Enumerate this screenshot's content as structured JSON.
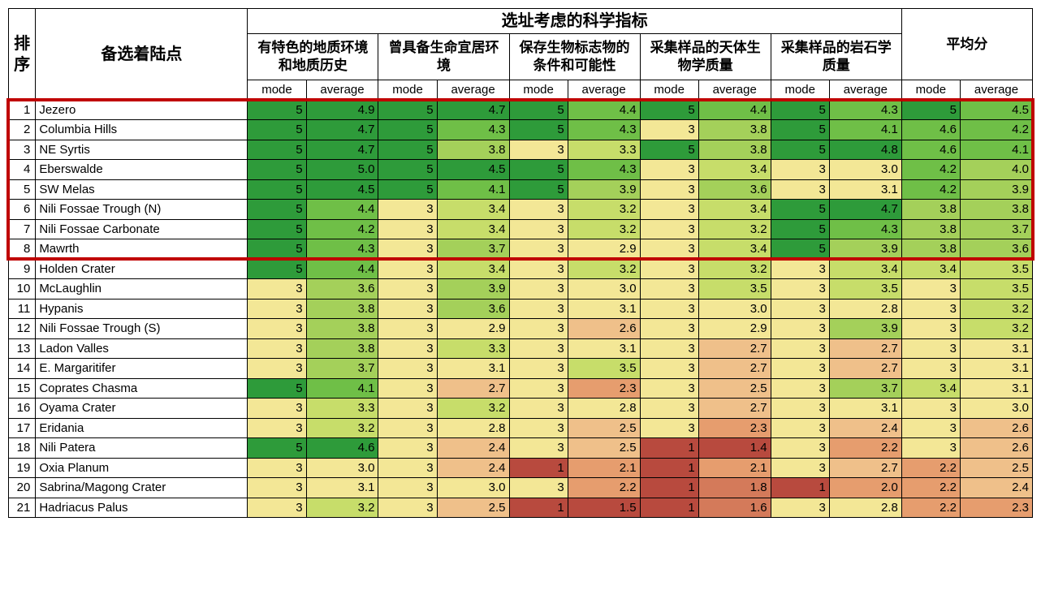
{
  "headers": {
    "rank": "排\n序",
    "site": "备选着陆点",
    "group": "选址考虑的科学指标",
    "criteria": [
      "有特色的地质环境和地质历史",
      "曾具备生命宜居环境",
      "保存生物标志物的条件和可能性",
      "采集样品的天体生物学质量",
      "采集样品的岩石学质量"
    ],
    "avg": "平均分",
    "mode": "mode",
    "average": "average"
  },
  "colors": {
    "g5": "#2e9b3a",
    "g4": "#6fbf47",
    "g3": "#a4d05a",
    "g2": "#c7dd6a",
    "y": "#f3e796",
    "o1": "#efc08a",
    "o2": "#e69d6e",
    "r1": "#d47a5a",
    "r2": "#b84a3e"
  },
  "highlight": {
    "from_row": 1,
    "to_row": 8
  },
  "rows": [
    {
      "rank": 1,
      "site": "Jezero",
      "cells": [
        {
          "v": 5,
          "c": "g5"
        },
        {
          "v": 4.9,
          "c": "g5"
        },
        {
          "v": 5,
          "c": "g5"
        },
        {
          "v": 4.7,
          "c": "g5"
        },
        {
          "v": 5,
          "c": "g5"
        },
        {
          "v": 4.4,
          "c": "g4"
        },
        {
          "v": 5,
          "c": "g5"
        },
        {
          "v": 4.4,
          "c": "g4"
        },
        {
          "v": 5,
          "c": "g5"
        },
        {
          "v": 4.3,
          "c": "g4"
        },
        {
          "v": 5,
          "c": "g5"
        },
        {
          "v": 4.5,
          "c": "g4"
        }
      ]
    },
    {
      "rank": 2,
      "site": "Columbia Hills",
      "cells": [
        {
          "v": 5,
          "c": "g5"
        },
        {
          "v": 4.7,
          "c": "g5"
        },
        {
          "v": 5,
          "c": "g5"
        },
        {
          "v": 4.3,
          "c": "g4"
        },
        {
          "v": 5,
          "c": "g5"
        },
        {
          "v": 4.3,
          "c": "g4"
        },
        {
          "v": 3,
          "c": "y"
        },
        {
          "v": 3.8,
          "c": "g3"
        },
        {
          "v": 5,
          "c": "g5"
        },
        {
          "v": 4.1,
          "c": "g4"
        },
        {
          "v": 4.6,
          "c": "g4"
        },
        {
          "v": 4.2,
          "c": "g4"
        }
      ]
    },
    {
      "rank": 3,
      "site": "NE Syrtis",
      "cells": [
        {
          "v": 5,
          "c": "g5"
        },
        {
          "v": 4.7,
          "c": "g5"
        },
        {
          "v": 5,
          "c": "g5"
        },
        {
          "v": 3.8,
          "c": "g3"
        },
        {
          "v": 3,
          "c": "y"
        },
        {
          "v": 3.3,
          "c": "g2"
        },
        {
          "v": 5,
          "c": "g5"
        },
        {
          "v": 3.8,
          "c": "g3"
        },
        {
          "v": 5,
          "c": "g5"
        },
        {
          "v": 4.8,
          "c": "g5"
        },
        {
          "v": 4.6,
          "c": "g4"
        },
        {
          "v": 4.1,
          "c": "g4"
        }
      ]
    },
    {
      "rank": 4,
      "site": "Eberswalde",
      "cells": [
        {
          "v": 5,
          "c": "g5"
        },
        {
          "v": 5.0,
          "c": "g5"
        },
        {
          "v": 5,
          "c": "g5"
        },
        {
          "v": 4.5,
          "c": "g5"
        },
        {
          "v": 5,
          "c": "g5"
        },
        {
          "v": 4.3,
          "c": "g4"
        },
        {
          "v": 3,
          "c": "y"
        },
        {
          "v": 3.4,
          "c": "g2"
        },
        {
          "v": 3,
          "c": "y"
        },
        {
          "v": 3.0,
          "c": "y"
        },
        {
          "v": 4.2,
          "c": "g4"
        },
        {
          "v": 4.0,
          "c": "g3"
        }
      ]
    },
    {
      "rank": 5,
      "site": "SW Melas",
      "cells": [
        {
          "v": 5,
          "c": "g5"
        },
        {
          "v": 4.5,
          "c": "g5"
        },
        {
          "v": 5,
          "c": "g5"
        },
        {
          "v": 4.1,
          "c": "g4"
        },
        {
          "v": 5,
          "c": "g5"
        },
        {
          "v": 3.9,
          "c": "g3"
        },
        {
          "v": 3,
          "c": "y"
        },
        {
          "v": 3.6,
          "c": "g3"
        },
        {
          "v": 3,
          "c": "y"
        },
        {
          "v": 3.1,
          "c": "y"
        },
        {
          "v": 4.2,
          "c": "g4"
        },
        {
          "v": 3.9,
          "c": "g3"
        }
      ]
    },
    {
      "rank": 6,
      "site": "Nili Fossae Trough (N)",
      "cells": [
        {
          "v": 5,
          "c": "g5"
        },
        {
          "v": 4.4,
          "c": "g4"
        },
        {
          "v": 3,
          "c": "y"
        },
        {
          "v": 3.4,
          "c": "g2"
        },
        {
          "v": 3,
          "c": "y"
        },
        {
          "v": 3.2,
          "c": "g2"
        },
        {
          "v": 3,
          "c": "y"
        },
        {
          "v": 3.4,
          "c": "g2"
        },
        {
          "v": 5,
          "c": "g5"
        },
        {
          "v": 4.7,
          "c": "g5"
        },
        {
          "v": 3.8,
          "c": "g3"
        },
        {
          "v": 3.8,
          "c": "g3"
        }
      ]
    },
    {
      "rank": 7,
      "site": "Nili Fossae Carbonate",
      "cells": [
        {
          "v": 5,
          "c": "g5"
        },
        {
          "v": 4.2,
          "c": "g4"
        },
        {
          "v": 3,
          "c": "y"
        },
        {
          "v": 3.4,
          "c": "g2"
        },
        {
          "v": 3,
          "c": "y"
        },
        {
          "v": 3.2,
          "c": "g2"
        },
        {
          "v": 3,
          "c": "y"
        },
        {
          "v": 3.2,
          "c": "g2"
        },
        {
          "v": 5,
          "c": "g5"
        },
        {
          "v": 4.3,
          "c": "g4"
        },
        {
          "v": 3.8,
          "c": "g3"
        },
        {
          "v": 3.7,
          "c": "g3"
        }
      ]
    },
    {
      "rank": 8,
      "site": "Mawrth",
      "cells": [
        {
          "v": 5,
          "c": "g5"
        },
        {
          "v": 4.3,
          "c": "g4"
        },
        {
          "v": 3,
          "c": "y"
        },
        {
          "v": 3.7,
          "c": "g3"
        },
        {
          "v": 3,
          "c": "y"
        },
        {
          "v": 2.9,
          "c": "y"
        },
        {
          "v": 3,
          "c": "y"
        },
        {
          "v": 3.4,
          "c": "g2"
        },
        {
          "v": 5,
          "c": "g5"
        },
        {
          "v": 3.9,
          "c": "g3"
        },
        {
          "v": 3.8,
          "c": "g3"
        },
        {
          "v": 3.6,
          "c": "g3"
        }
      ]
    },
    {
      "rank": 9,
      "site": "Holden Crater",
      "cells": [
        {
          "v": 5,
          "c": "g5"
        },
        {
          "v": 4.4,
          "c": "g4"
        },
        {
          "v": 3,
          "c": "y"
        },
        {
          "v": 3.4,
          "c": "g2"
        },
        {
          "v": 3,
          "c": "y"
        },
        {
          "v": 3.2,
          "c": "g2"
        },
        {
          "v": 3,
          "c": "y"
        },
        {
          "v": 3.2,
          "c": "g2"
        },
        {
          "v": 3,
          "c": "y"
        },
        {
          "v": 3.4,
          "c": "g2"
        },
        {
          "v": 3.4,
          "c": "g2"
        },
        {
          "v": 3.5,
          "c": "g2"
        }
      ]
    },
    {
      "rank": 10,
      "site": "McLaughlin",
      "cells": [
        {
          "v": 3,
          "c": "y"
        },
        {
          "v": 3.6,
          "c": "g3"
        },
        {
          "v": 3,
          "c": "y"
        },
        {
          "v": 3.9,
          "c": "g3"
        },
        {
          "v": 3,
          "c": "y"
        },
        {
          "v": 3.0,
          "c": "y"
        },
        {
          "v": 3,
          "c": "y"
        },
        {
          "v": 3.5,
          "c": "g2"
        },
        {
          "v": 3,
          "c": "y"
        },
        {
          "v": 3.5,
          "c": "g2"
        },
        {
          "v": 3,
          "c": "y"
        },
        {
          "v": 3.5,
          "c": "g2"
        }
      ]
    },
    {
      "rank": 11,
      "site": "Hypanis",
      "cells": [
        {
          "v": 3,
          "c": "y"
        },
        {
          "v": 3.8,
          "c": "g3"
        },
        {
          "v": 3,
          "c": "y"
        },
        {
          "v": 3.6,
          "c": "g3"
        },
        {
          "v": 3,
          "c": "y"
        },
        {
          "v": 3.1,
          "c": "y"
        },
        {
          "v": 3,
          "c": "y"
        },
        {
          "v": 3.0,
          "c": "y"
        },
        {
          "v": 3,
          "c": "y"
        },
        {
          "v": 2.8,
          "c": "y"
        },
        {
          "v": 3,
          "c": "y"
        },
        {
          "v": 3.2,
          "c": "g2"
        }
      ]
    },
    {
      "rank": 12,
      "site": "Nili Fossae Trough (S)",
      "cells": [
        {
          "v": 3,
          "c": "y"
        },
        {
          "v": 3.8,
          "c": "g3"
        },
        {
          "v": 3,
          "c": "y"
        },
        {
          "v": 2.9,
          "c": "y"
        },
        {
          "v": 3,
          "c": "y"
        },
        {
          "v": 2.6,
          "c": "o1"
        },
        {
          "v": 3,
          "c": "y"
        },
        {
          "v": 2.9,
          "c": "y"
        },
        {
          "v": 3,
          "c": "y"
        },
        {
          "v": 3.9,
          "c": "g3"
        },
        {
          "v": 3,
          "c": "y"
        },
        {
          "v": 3.2,
          "c": "g2"
        }
      ]
    },
    {
      "rank": 13,
      "site": "Ladon Valles",
      "cells": [
        {
          "v": 3,
          "c": "y"
        },
        {
          "v": 3.8,
          "c": "g3"
        },
        {
          "v": 3,
          "c": "y"
        },
        {
          "v": 3.3,
          "c": "g2"
        },
        {
          "v": 3,
          "c": "y"
        },
        {
          "v": 3.1,
          "c": "y"
        },
        {
          "v": 3,
          "c": "y"
        },
        {
          "v": 2.7,
          "c": "o1"
        },
        {
          "v": 3,
          "c": "y"
        },
        {
          "v": 2.7,
          "c": "o1"
        },
        {
          "v": 3,
          "c": "y"
        },
        {
          "v": 3.1,
          "c": "y"
        }
      ]
    },
    {
      "rank": 14,
      "site": "E. Margaritifer",
      "cells": [
        {
          "v": 3,
          "c": "y"
        },
        {
          "v": 3.7,
          "c": "g3"
        },
        {
          "v": 3,
          "c": "y"
        },
        {
          "v": 3.1,
          "c": "y"
        },
        {
          "v": 3,
          "c": "y"
        },
        {
          "v": 3.5,
          "c": "g2"
        },
        {
          "v": 3,
          "c": "y"
        },
        {
          "v": 2.7,
          "c": "o1"
        },
        {
          "v": 3,
          "c": "y"
        },
        {
          "v": 2.7,
          "c": "o1"
        },
        {
          "v": 3,
          "c": "y"
        },
        {
          "v": 3.1,
          "c": "y"
        }
      ]
    },
    {
      "rank": 15,
      "site": "Coprates Chasma",
      "cells": [
        {
          "v": 5,
          "c": "g5"
        },
        {
          "v": 4.1,
          "c": "g4"
        },
        {
          "v": 3,
          "c": "y"
        },
        {
          "v": 2.7,
          "c": "o1"
        },
        {
          "v": 3,
          "c": "y"
        },
        {
          "v": 2.3,
          "c": "o2"
        },
        {
          "v": 3,
          "c": "y"
        },
        {
          "v": 2.5,
          "c": "o1"
        },
        {
          "v": 3,
          "c": "y"
        },
        {
          "v": 3.7,
          "c": "g3"
        },
        {
          "v": 3.4,
          "c": "g2"
        },
        {
          "v": 3.1,
          "c": "y"
        }
      ]
    },
    {
      "rank": 16,
      "site": "Oyama Crater",
      "cells": [
        {
          "v": 3,
          "c": "y"
        },
        {
          "v": 3.3,
          "c": "g2"
        },
        {
          "v": 3,
          "c": "y"
        },
        {
          "v": 3.2,
          "c": "g2"
        },
        {
          "v": 3,
          "c": "y"
        },
        {
          "v": 2.8,
          "c": "y"
        },
        {
          "v": 3,
          "c": "y"
        },
        {
          "v": 2.7,
          "c": "o1"
        },
        {
          "v": 3,
          "c": "y"
        },
        {
          "v": 3.1,
          "c": "y"
        },
        {
          "v": 3,
          "c": "y"
        },
        {
          "v": 3.0,
          "c": "y"
        }
      ]
    },
    {
      "rank": 17,
      "site": "Eridania",
      "cells": [
        {
          "v": 3,
          "c": "y"
        },
        {
          "v": 3.2,
          "c": "g2"
        },
        {
          "v": 3,
          "c": "y"
        },
        {
          "v": 2.8,
          "c": "y"
        },
        {
          "v": 3,
          "c": "y"
        },
        {
          "v": 2.5,
          "c": "o1"
        },
        {
          "v": 3,
          "c": "y"
        },
        {
          "v": 2.3,
          "c": "o2"
        },
        {
          "v": 3,
          "c": "y"
        },
        {
          "v": 2.4,
          "c": "o1"
        },
        {
          "v": 3,
          "c": "y"
        },
        {
          "v": 2.6,
          "c": "o1"
        }
      ]
    },
    {
      "rank": 18,
      "site": "Nili Patera",
      "cells": [
        {
          "v": 5,
          "c": "g5"
        },
        {
          "v": 4.6,
          "c": "g5"
        },
        {
          "v": 3,
          "c": "y"
        },
        {
          "v": 2.4,
          "c": "o1"
        },
        {
          "v": 3,
          "c": "y"
        },
        {
          "v": 2.5,
          "c": "o1"
        },
        {
          "v": 1,
          "c": "r2"
        },
        {
          "v": 1.4,
          "c": "r2"
        },
        {
          "v": 3,
          "c": "y"
        },
        {
          "v": 2.2,
          "c": "o2"
        },
        {
          "v": 3,
          "c": "y"
        },
        {
          "v": 2.6,
          "c": "o1"
        }
      ]
    },
    {
      "rank": 19,
      "site": "Oxia Planum",
      "cells": [
        {
          "v": 3,
          "c": "y"
        },
        {
          "v": 3.0,
          "c": "y"
        },
        {
          "v": 3,
          "c": "y"
        },
        {
          "v": 2.4,
          "c": "o1"
        },
        {
          "v": 1,
          "c": "r2"
        },
        {
          "v": 2.1,
          "c": "o2"
        },
        {
          "v": 1,
          "c": "r2"
        },
        {
          "v": 2.1,
          "c": "o2"
        },
        {
          "v": 3,
          "c": "y"
        },
        {
          "v": 2.7,
          "c": "o1"
        },
        {
          "v": 2.2,
          "c": "o2"
        },
        {
          "v": 2.5,
          "c": "o1"
        }
      ]
    },
    {
      "rank": 20,
      "site": "Sabrina/Magong Crater",
      "cells": [
        {
          "v": 3,
          "c": "y"
        },
        {
          "v": 3.1,
          "c": "y"
        },
        {
          "v": 3,
          "c": "y"
        },
        {
          "v": 3.0,
          "c": "y"
        },
        {
          "v": 3,
          "c": "y"
        },
        {
          "v": 2.2,
          "c": "o2"
        },
        {
          "v": 1,
          "c": "r2"
        },
        {
          "v": 1.8,
          "c": "r1"
        },
        {
          "v": 1,
          "c": "r2"
        },
        {
          "v": 2.0,
          "c": "o2"
        },
        {
          "v": 2.2,
          "c": "o2"
        },
        {
          "v": 2.4,
          "c": "o1"
        }
      ]
    },
    {
      "rank": 21,
      "site": "Hadriacus Palus",
      "cells": [
        {
          "v": 3,
          "c": "y"
        },
        {
          "v": 3.2,
          "c": "g2"
        },
        {
          "v": 3,
          "c": "y"
        },
        {
          "v": 2.5,
          "c": "o1"
        },
        {
          "v": 1,
          "c": "r2"
        },
        {
          "v": 1.5,
          "c": "r2"
        },
        {
          "v": 1,
          "c": "r2"
        },
        {
          "v": 1.6,
          "c": "r1"
        },
        {
          "v": 3,
          "c": "y"
        },
        {
          "v": 2.8,
          "c": "y"
        },
        {
          "v": 2.2,
          "c": "o2"
        },
        {
          "v": 2.3,
          "c": "o2"
        }
      ]
    }
  ]
}
